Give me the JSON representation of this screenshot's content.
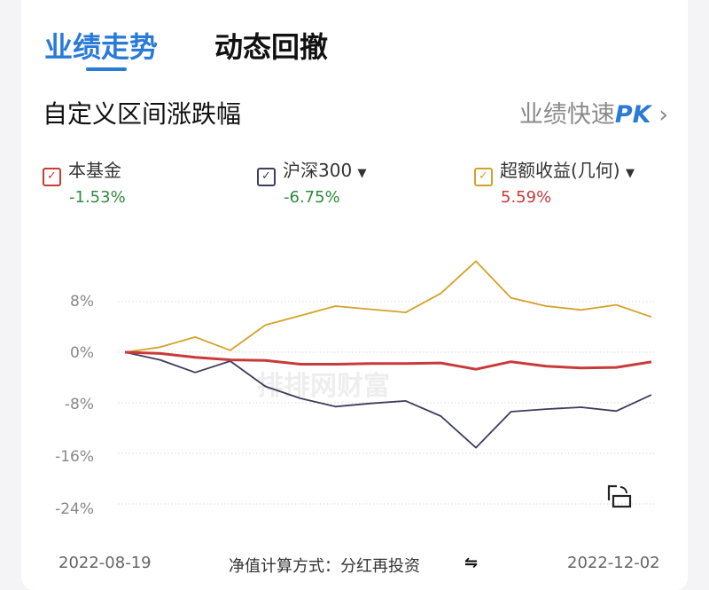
{
  "tabs": [
    "业绩走势",
    "动态回撤"
  ],
  "section_title": "自定义区间涨跌幅",
  "pk_link": {
    "label": "业绩快速",
    "accent": "PK"
  },
  "legend": [
    {
      "name": "本基金",
      "value": "-1.53%",
      "color": "#c93a3a",
      "value_color": "#2e8b3e",
      "dropdown": false
    },
    {
      "name": "沪深300",
      "value": "-6.75%",
      "color": "#3d3d5c",
      "value_color": "#2e8b3e",
      "dropdown": true
    },
    {
      "name": "超额收益(几何)",
      "value": "5.59%",
      "color": "#d4a22a",
      "value_color": "#c93a3a",
      "dropdown": true
    }
  ],
  "footer": {
    "start_date": "2022-08-19",
    "end_date": "2022-12-02",
    "calc_method": "净值计算方式：分红再投资"
  },
  "watermark": "排排网财富",
  "chart_data": {
    "type": "line",
    "yticks": [
      "8%",
      "0%",
      "-8%",
      "-16%",
      "-24%"
    ],
    "ylim": [
      -24,
      14.5
    ],
    "grid": true,
    "x_range": [
      "2022-08-19",
      "2022-12-02"
    ],
    "series": [
      {
        "name": "超额收益(几何)",
        "color": "#d4a22a",
        "values": [
          0,
          0.8,
          2.4,
          0.3,
          4.3,
          5.8,
          7.3,
          6.8,
          6.3,
          9.3,
          14.4,
          8.6,
          7.3,
          6.7,
          7.5,
          5.59
        ]
      },
      {
        "name": "沪深300",
        "color": "#3d3d5c",
        "values": [
          0,
          -1.2,
          -3.2,
          -1.4,
          -5.4,
          -7.3,
          -8.6,
          -8.1,
          -7.7,
          -10.1,
          -15.1,
          -9.4,
          -9.0,
          -8.7,
          -9.3,
          -6.75
        ]
      },
      {
        "name": "本基金",
        "color": "#c93a3a",
        "values": [
          0,
          -0.2,
          -0.8,
          -1.2,
          -1.3,
          -1.9,
          -1.9,
          -1.8,
          -1.8,
          -1.7,
          -2.7,
          -1.5,
          -2.2,
          -2.5,
          -2.4,
          -1.53
        ]
      }
    ]
  }
}
